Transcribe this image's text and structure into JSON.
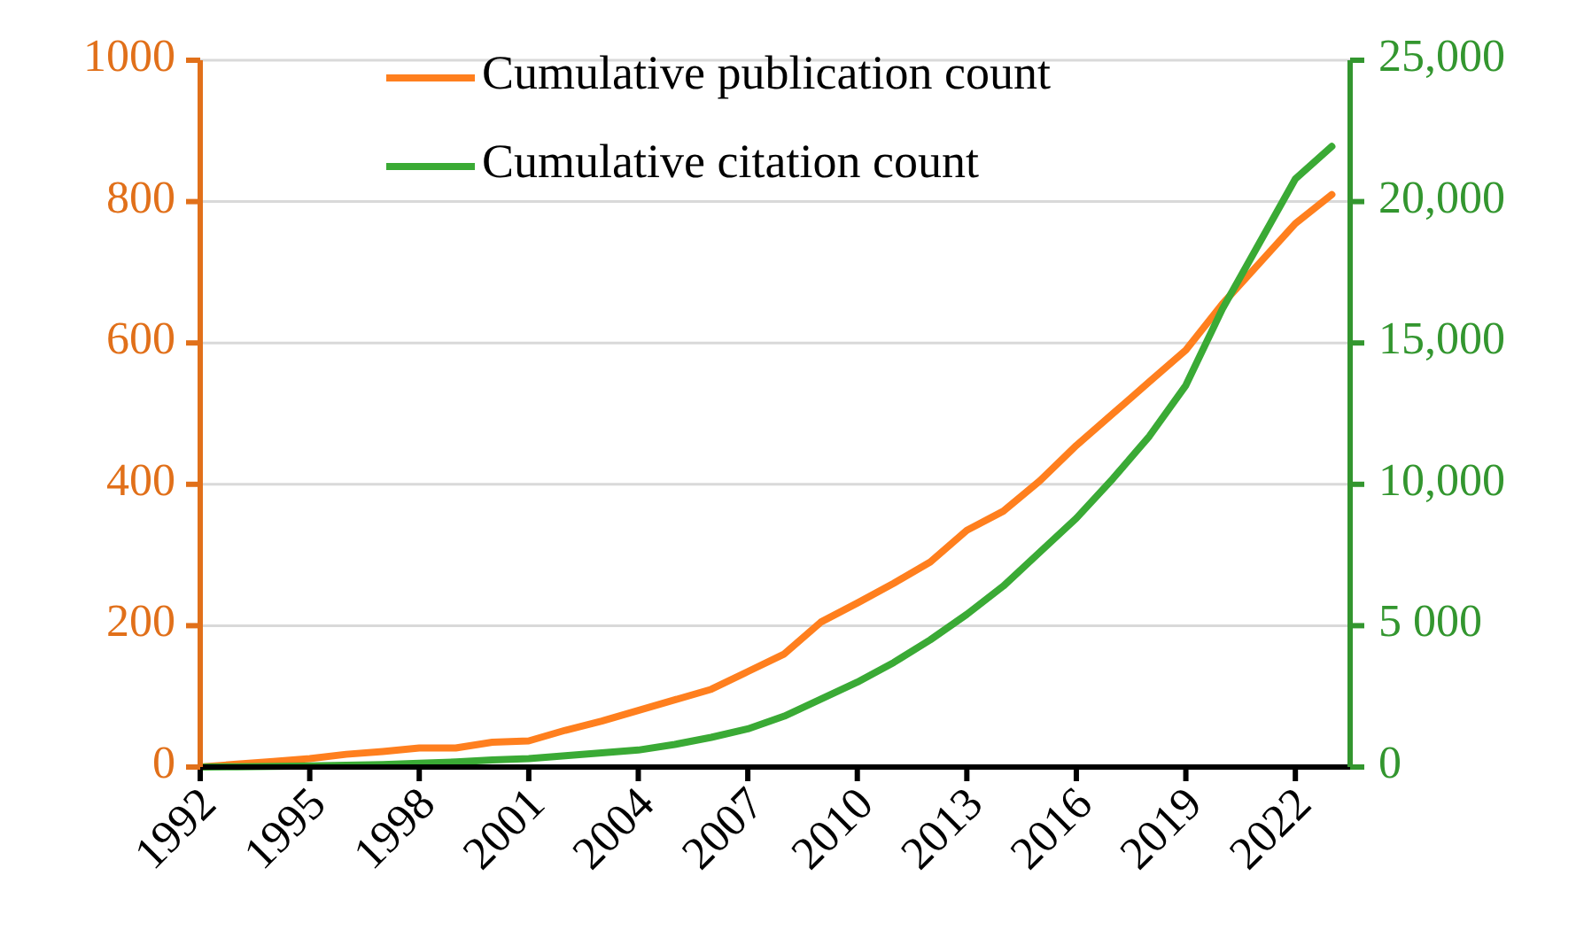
{
  "chart_data": {
    "type": "line",
    "x": [
      1992,
      1993,
      1994,
      1995,
      1996,
      1997,
      1998,
      1999,
      2000,
      2001,
      2002,
      2003,
      2004,
      2005,
      2006,
      2007,
      2008,
      2009,
      2010,
      2011,
      2012,
      2013,
      2014,
      2015,
      2016,
      2017,
      2018,
      2019,
      2020,
      2021,
      2022,
      2023
    ],
    "xlim": [
      1992,
      2023.5
    ],
    "xticks": [
      1992,
      1995,
      1998,
      2001,
      2004,
      2007,
      2010,
      2013,
      2016,
      2019,
      2022
    ],
    "ylim": [
      0,
      1000
    ],
    "yticks": [
      0,
      200,
      400,
      600,
      800,
      1000
    ],
    "y2lim": [
      0,
      25000
    ],
    "y2ticks": [
      0,
      {
        "value": 5000,
        "label": "5 000"
      },
      {
        "value": 10000,
        "label": "10,000"
      },
      {
        "value": 15000,
        "label": "15,000"
      },
      {
        "value": 20000,
        "label": "20,000"
      },
      {
        "value": 25000,
        "label": "25,000"
      }
    ],
    "series": [
      {
        "name": "Cumulative publication count",
        "color": "#ff7f1e",
        "values": [
          0,
          4,
          8,
          12,
          18,
          22,
          27,
          27,
          35,
          37,
          52,
          65,
          80,
          95,
          110,
          135,
          160,
          205,
          232,
          260,
          290,
          335,
          362,
          405,
          455,
          500,
          545,
          590,
          655,
          712,
          769,
          810
        ]
      },
      {
        "name": "Cumulative citation count",
        "color": "#3aaa35",
        "axis": "y2",
        "values": [
          0,
          10,
          20,
          40,
          60,
          90,
          130,
          180,
          250,
          300,
          400,
          500,
          600,
          800,
          1050,
          1350,
          1800,
          2400,
          3000,
          3700,
          4500,
          5400,
          6400,
          7600,
          8800,
          10200,
          11700,
          13500,
          16200,
          18500,
          20800,
          21950
        ]
      }
    ],
    "grid": "y",
    "legend": "top",
    "marker": "none",
    "line_style": "solid"
  }
}
